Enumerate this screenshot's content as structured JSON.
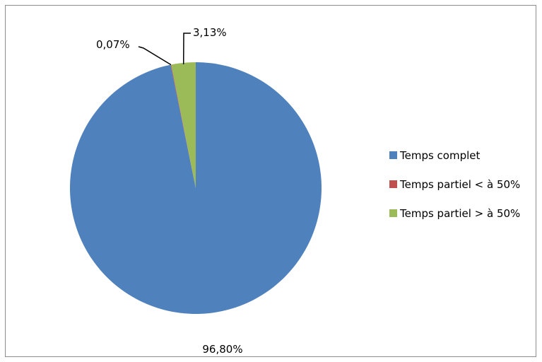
{
  "chart_data": {
    "type": "pie",
    "title": "",
    "slices": [
      {
        "label": "Temps complet",
        "value": 96.8,
        "display": "96,80%",
        "color": "#4f81bd"
      },
      {
        "label": "Temps partiel < à 50%",
        "value": 0.07,
        "display": "0,07%",
        "color": "#c0504d"
      },
      {
        "label": "Temps partiel > à 50%",
        "value": 3.13,
        "display": "3,13%",
        "color": "#9bbb59"
      }
    ],
    "legend_position": "right"
  },
  "legend": {
    "items": [
      {
        "label": "Temps complet",
        "color": "#4f81bd"
      },
      {
        "label": "Temps partiel < à 50%",
        "color": "#c0504d"
      },
      {
        "label": "Temps partiel > à 50%",
        "color": "#9bbb59"
      }
    ]
  },
  "labels": {
    "slice_0": "96,80%",
    "slice_1": "0,07%",
    "slice_2": "3,13%"
  }
}
